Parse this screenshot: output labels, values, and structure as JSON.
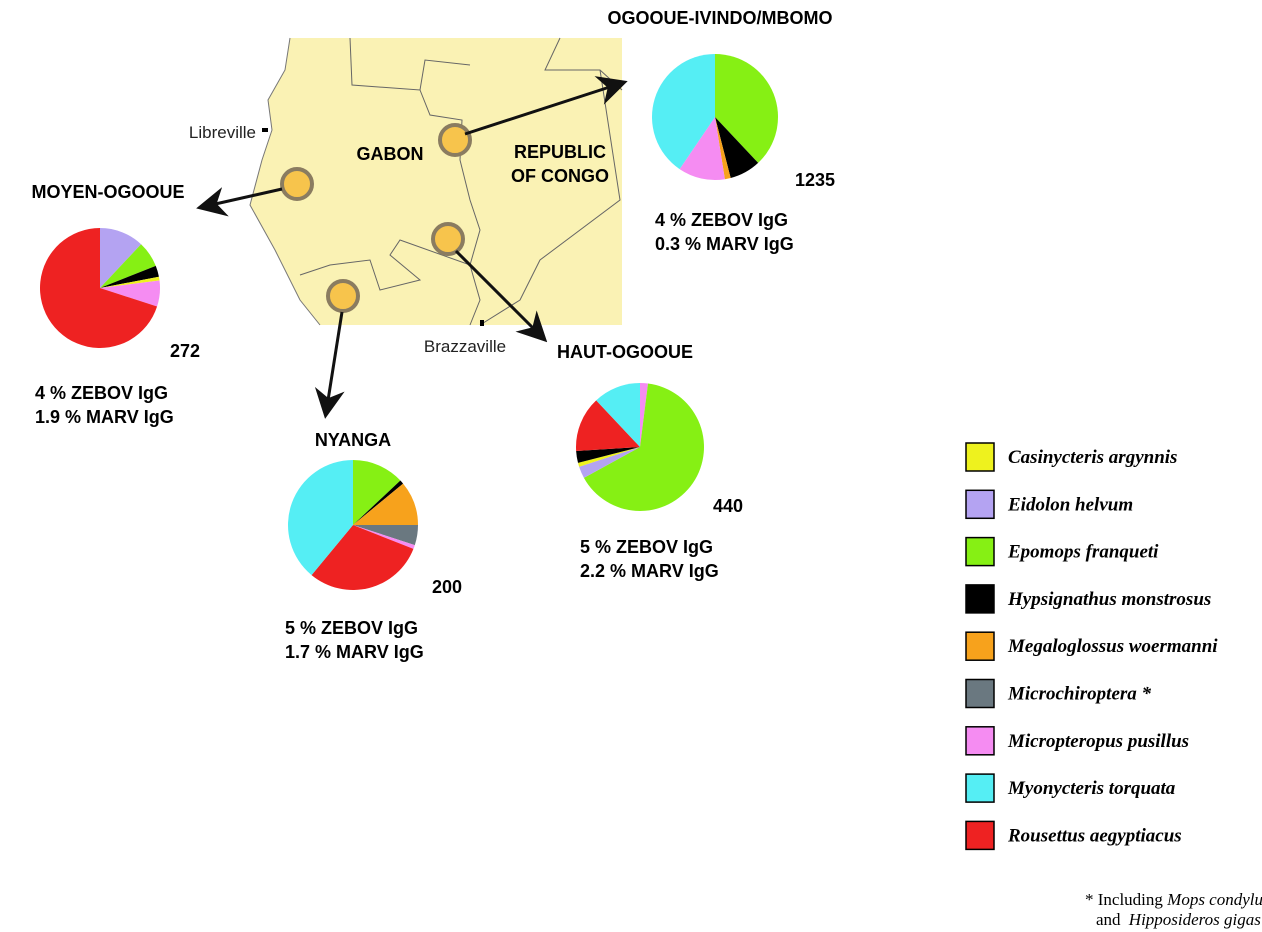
{
  "map_labels": {
    "libreville": "Libreville",
    "gabon": "GABON",
    "congo_line1": "REPUBLIC",
    "congo_line2": "OF CONGO",
    "brazzaville": "Brazzaville"
  },
  "sites": [
    {
      "name": "OGOOUE-IVINDO/MBOMO",
      "n": "1235",
      "zebov": "4 % ZEBOV IgG",
      "marv": "0.3 % MARV IgG",
      "values": [
        0,
        0,
        38,
        8,
        1.5,
        0,
        12,
        40.5,
        0
      ]
    },
    {
      "name": "MOYEN-OGOOUE",
      "n": "272",
      "zebov": "4 % ZEBOV IgG",
      "marv": "1.9 % MARV IgG",
      "values": [
        1,
        12,
        7,
        3,
        0,
        0,
        7,
        0,
        70
      ]
    },
    {
      "name": "NYANGA",
      "n": "200",
      "zebov": "5 % ZEBOV IgG",
      "marv": "1.7 % MARV IgG",
      "values": [
        0,
        0,
        13,
        1,
        11,
        5,
        1,
        39,
        30
      ]
    },
    {
      "name": "HAUT-OGOOUE",
      "n": "440",
      "zebov": "5 % ZEBOV IgG",
      "marv": "2.2 % MARV IgG",
      "values": [
        1,
        3,
        65,
        3,
        0,
        0,
        2,
        12,
        14
      ]
    }
  ],
  "legend": {
    "species": [
      {
        "name": "Casinycteris argynnis",
        "color": "#eef21e"
      },
      {
        "name": "Eidolon helvum",
        "color": "#b4a3f2"
      },
      {
        "name": "Epomops franqueti",
        "color": "#86f014"
      },
      {
        "name": "Hypsignathus monstrosus",
        "color": "#000000"
      },
      {
        "name": "Megaloglossus woermanni",
        "color": "#f7a21c"
      },
      {
        "name": "Microchiroptera *",
        "color": "#6a7880"
      },
      {
        "name": "Micropteropus pusillus",
        "color": "#f58cf2"
      },
      {
        "name": "Myonycteris torquata",
        "color": "#55eef4"
      },
      {
        "name": "Rousettus aegyptiacus",
        "color": "#ee2222"
      }
    ],
    "footnote": [
      "* Including ",
      "Mops condylurus",
      "and ",
      "Hipposideros gigas"
    ]
  }
}
